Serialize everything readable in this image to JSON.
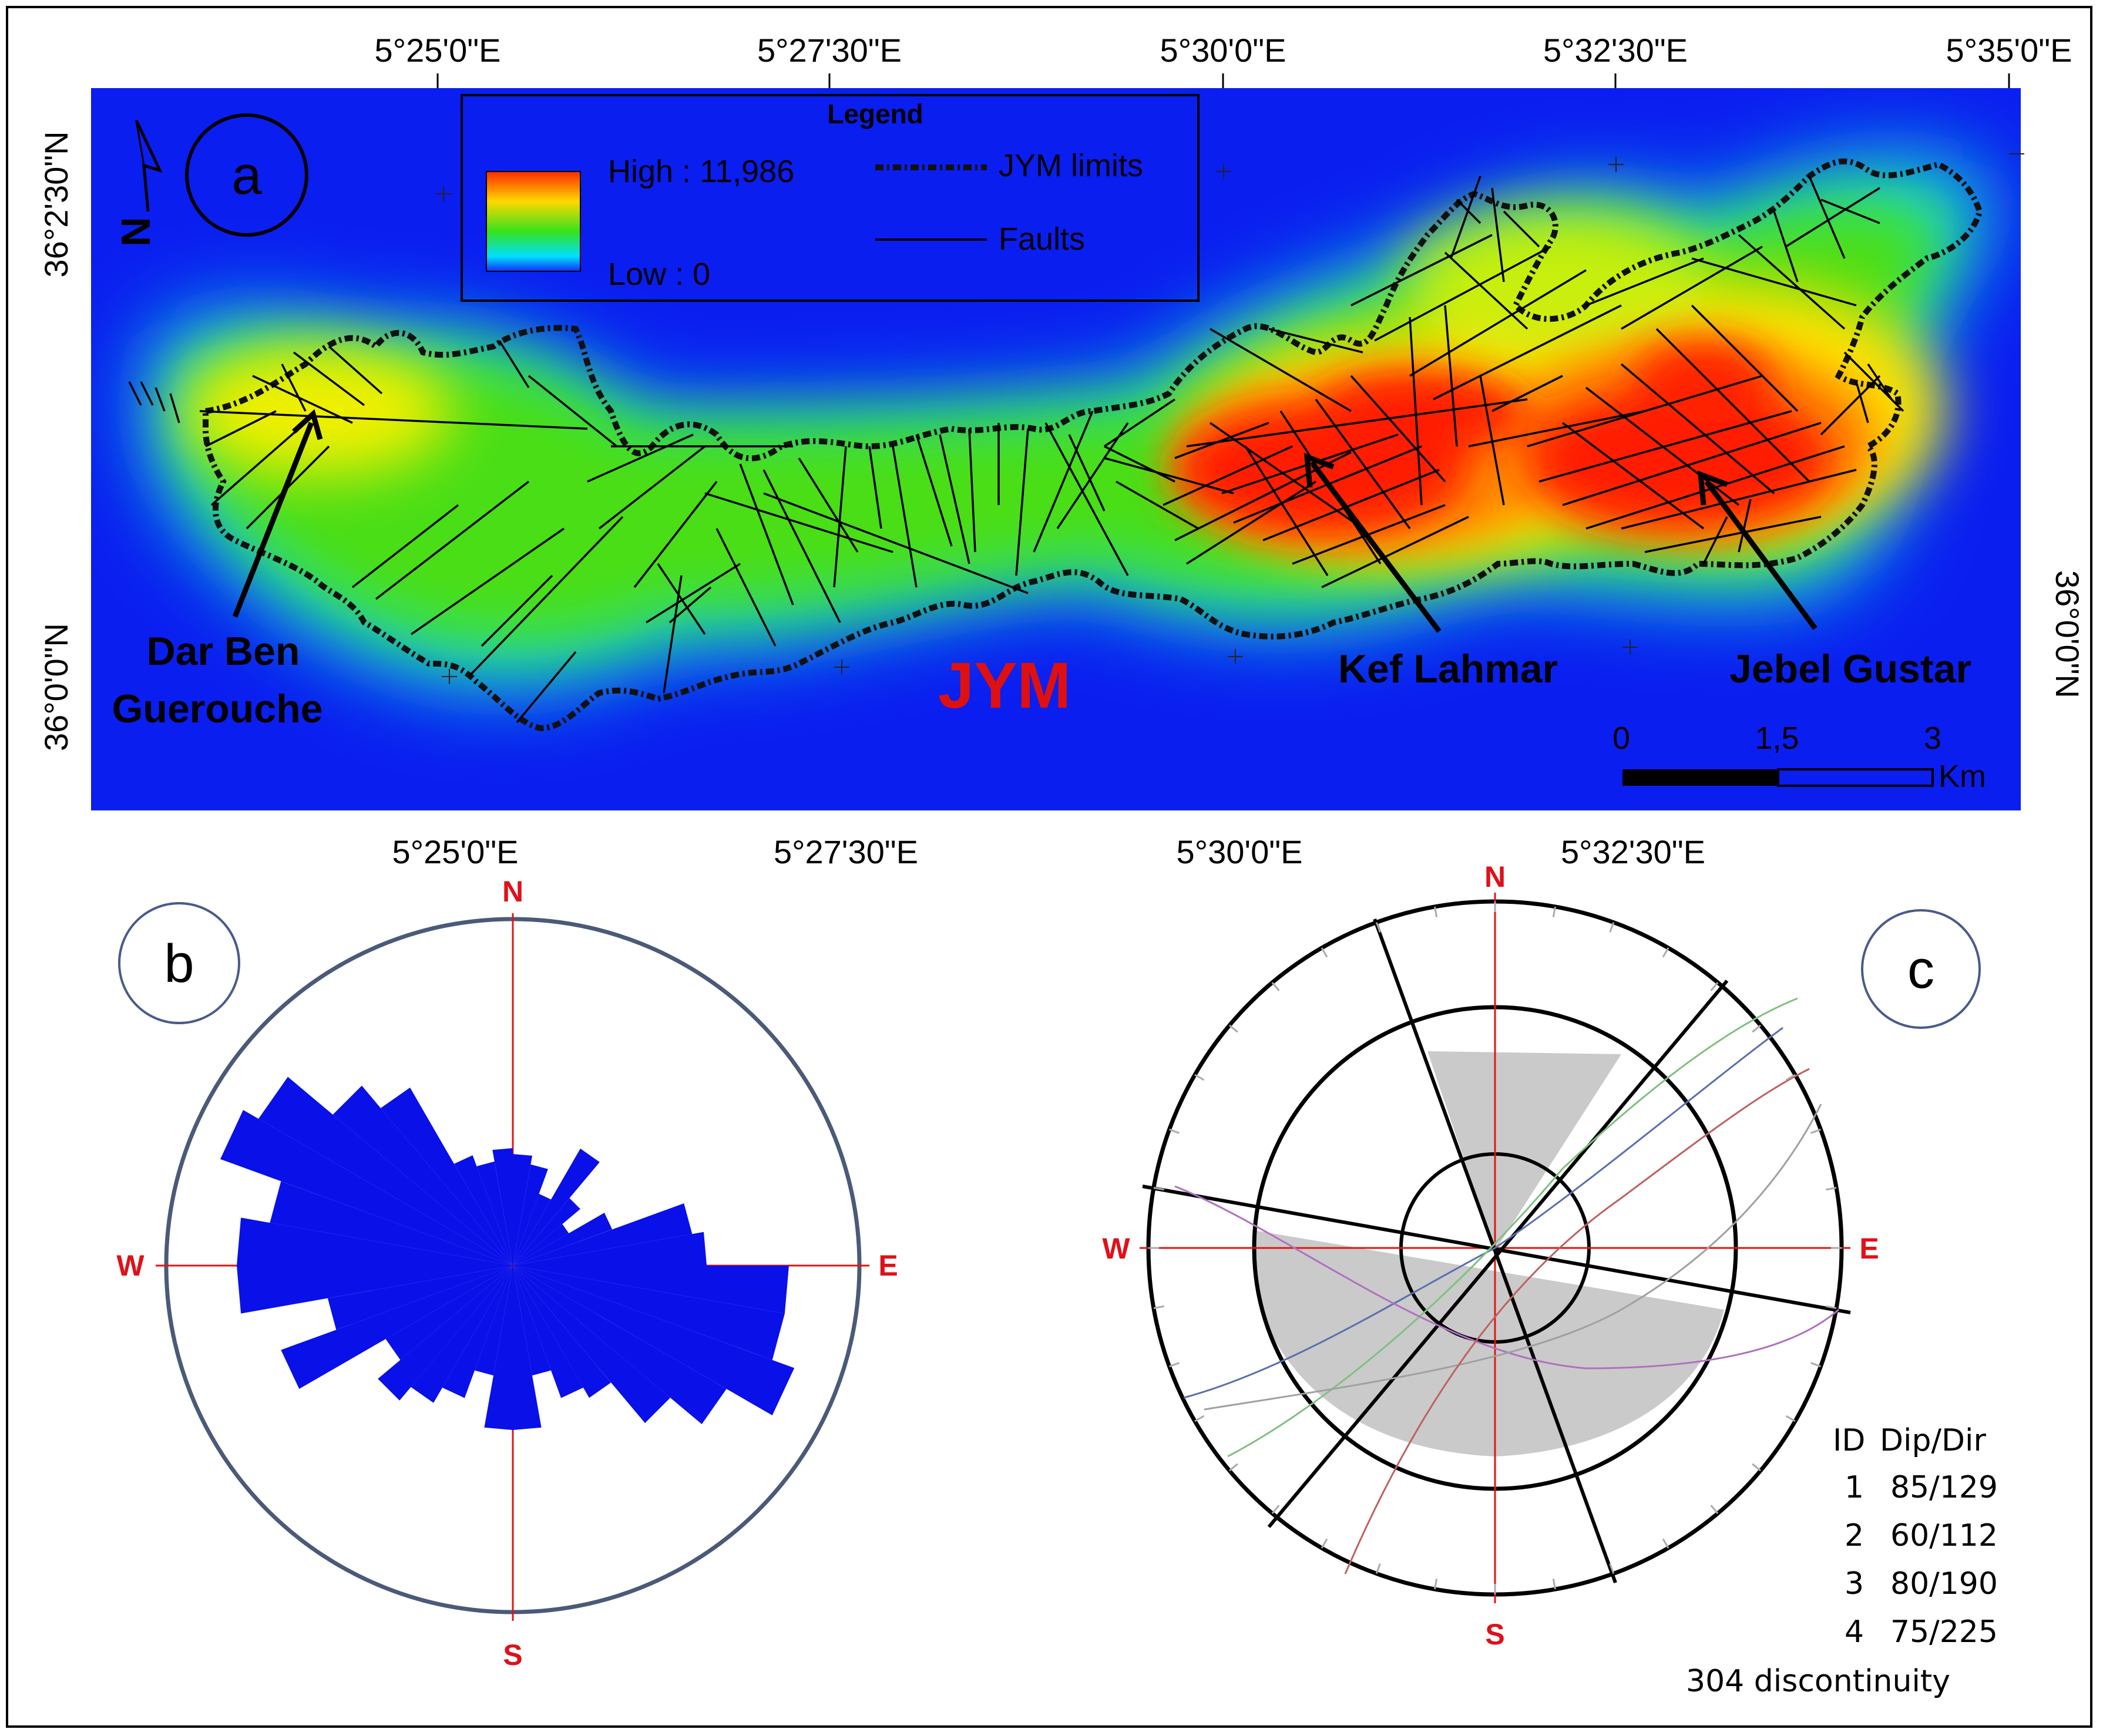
{
  "panel_a": {
    "letter": "a",
    "top_lon_labels": [
      "5°25'0\"E",
      "5°27'30\"E",
      "5°30'0\"E",
      "5°32'30\"E",
      "5°35'0\"E"
    ],
    "bottom_lon_labels": [
      "5°25'0\"E",
      "5°27'30\"E",
      "5°30'0\"E",
      "5°32'30\"E"
    ],
    "left_lat_labels": [
      "36°2'30\"N",
      "36°0'0\"N"
    ],
    "right_lat_labels": [
      "36°0'0\"N"
    ],
    "north_arrow": "N",
    "legend": {
      "title": "Legend",
      "high": "High : 11,986",
      "low": "Low : 0",
      "limits": "JYM limits",
      "faults": "Faults"
    },
    "place_labels": {
      "dar_ben_1": "Dar Ben",
      "dar_ben_2": "Guerouche",
      "kef": "Kef Lahmar",
      "jebel": "Jebel Gustar",
      "jym": "JYM"
    },
    "scale_bar": {
      "ticks": [
        "0",
        "1,5",
        "3"
      ],
      "unit": "Km"
    },
    "colors": {
      "low": "#0a1ef0",
      "high": "#ff1a00",
      "jym_label": "#e01010"
    }
  },
  "panel_b": {
    "letter": "b",
    "directions": {
      "n": "N",
      "s": "S",
      "e": "E",
      "w": "W"
    }
  },
  "panel_c": {
    "letter": "c",
    "directions": {
      "n": "N",
      "s": "S",
      "e": "E",
      "w": "W"
    },
    "table_header": {
      "id": "ID",
      "dipdir": "Dip/Dir"
    },
    "rows": [
      {
        "id": "1",
        "dipdir": "85/129"
      },
      {
        "id": "2",
        "dipdir": "60/112"
      },
      {
        "id": "3",
        "dipdir": "80/190"
      },
      {
        "id": "4",
        "dipdir": "75/225"
      }
    ],
    "footer": "304 discontinuity"
  }
}
